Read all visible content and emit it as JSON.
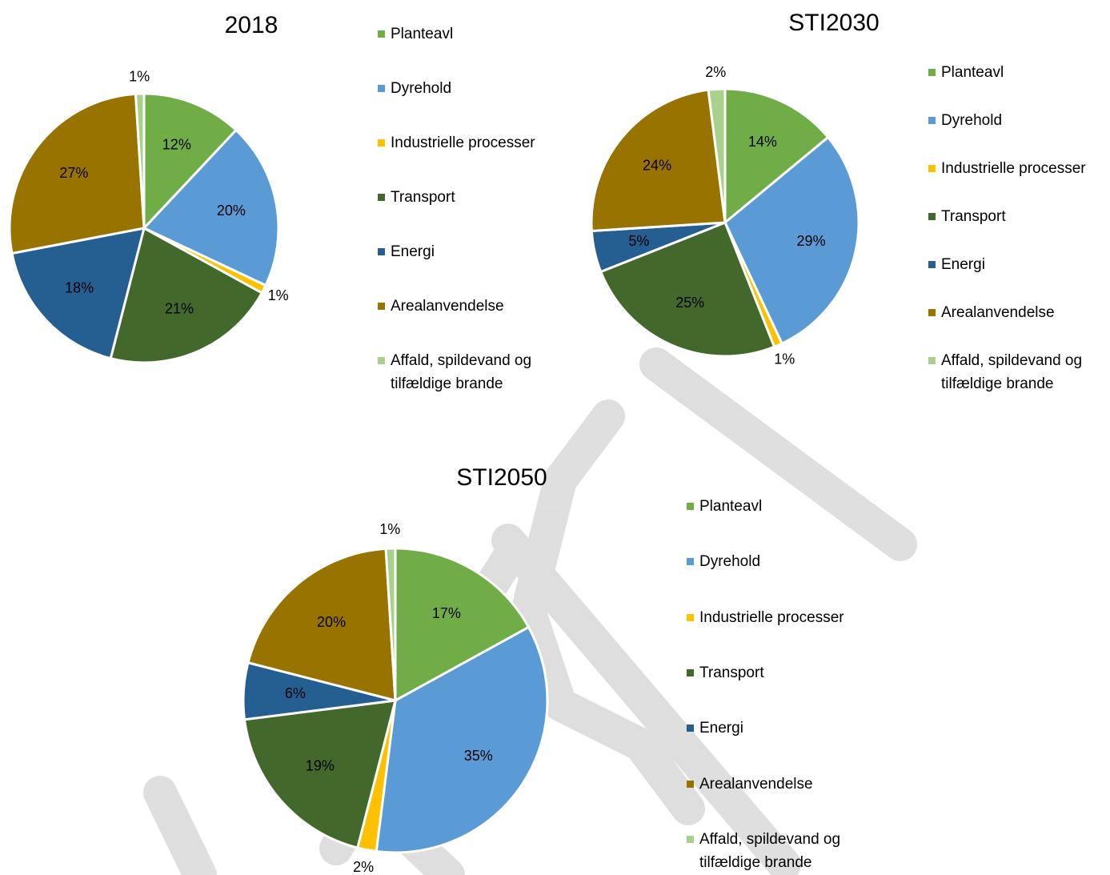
{
  "chart_data": [
    {
      "type": "pie",
      "title": "2018",
      "categories": [
        "Planteavl",
        "Dyrehold",
        "Industrielle processer",
        "Transport",
        "Energi",
        "Arealanvendelse",
        "Affald, spildevand og tilfældige brande"
      ],
      "values": [
        12,
        20,
        1,
        21,
        18,
        27,
        1
      ],
      "value_labels": [
        "12%",
        "20%",
        "1%",
        "21%",
        "18%",
        "27%",
        "1%"
      ],
      "colors": [
        "#70ad47",
        "#5b9bd5",
        "#ffc000",
        "#43682b",
        "#255e91",
        "#997300",
        "#a9d18e"
      ]
    },
    {
      "type": "pie",
      "title": "STI2030",
      "categories": [
        "Planteavl",
        "Dyrehold",
        "Industrielle processer",
        "Transport",
        "Energi",
        "Arealanvendelse",
        "Affald, spildevand og tilfældige brande"
      ],
      "values": [
        14,
        29,
        1,
        25,
        5,
        24,
        2
      ],
      "value_labels": [
        "14%",
        "29%",
        "1%",
        "25%",
        "5%",
        "24%",
        "2%"
      ],
      "colors": [
        "#70ad47",
        "#5b9bd5",
        "#ffc000",
        "#43682b",
        "#255e91",
        "#997300",
        "#a9d18e"
      ]
    },
    {
      "type": "pie",
      "title": "STI2050",
      "categories": [
        "Planteavl",
        "Dyrehold",
        "Industrielle processer",
        "Transport",
        "Energi",
        "Arealanvendelse",
        "Affald, spildevand og tilfældige brande"
      ],
      "values": [
        17,
        35,
        2,
        19,
        6,
        20,
        1
      ],
      "value_labels": [
        "17%",
        "35%",
        "2%",
        "19%",
        "6%",
        "20%",
        "1%"
      ],
      "colors": [
        "#70ad47",
        "#5b9bd5",
        "#ffc000",
        "#43682b",
        "#255e91",
        "#997300",
        "#a9d18e"
      ]
    }
  ]
}
